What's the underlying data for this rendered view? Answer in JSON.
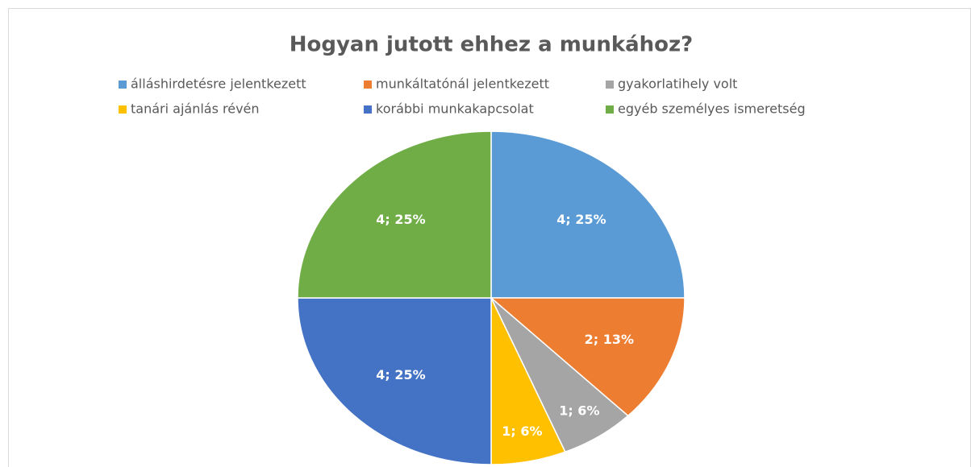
{
  "chart_data": {
    "type": "pie",
    "title": "Hogyan jutott ehhez a munkához?",
    "categories": [
      "álláshirdetésre jelentkezett",
      "munkáltatónál jelentkezett",
      "gyakorlatihely volt",
      "tanári ajánlás révén",
      "korábbi munkakapcsolat",
      "egyéb személyes ismeretség"
    ],
    "values": [
      4,
      2,
      1,
      1,
      4,
      4
    ],
    "value_labels": [
      "4; 25%",
      "2; 13%",
      "1; 6%",
      "1; 6%",
      "4; 25%",
      "4; 25%"
    ],
    "colors": [
      "#5b9bd5",
      "#ed7d31",
      "#a5a5a5",
      "#ffc000",
      "#4472c4",
      "#70ad47"
    ],
    "legend": "top"
  }
}
